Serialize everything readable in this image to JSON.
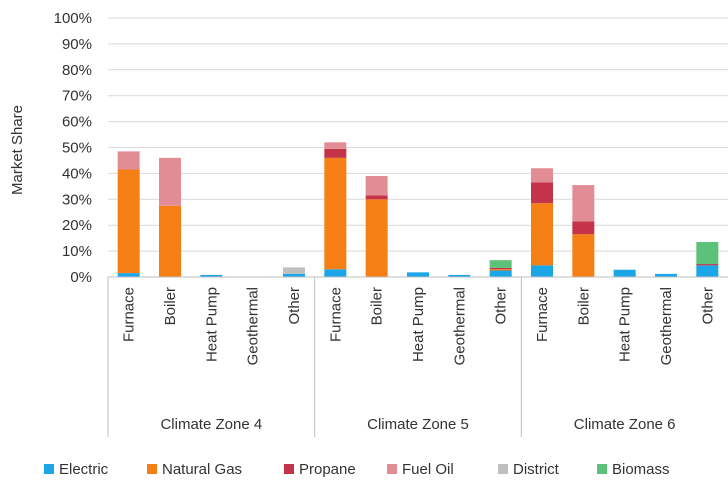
{
  "chart_data": {
    "type": "bar",
    "stacked": true,
    "ylabel": "Market Share",
    "ylim": [
      0,
      100
    ],
    "y_tick_values": [
      0,
      10,
      20,
      30,
      40,
      50,
      60,
      70,
      80,
      90,
      100
    ],
    "y_tick_labels": [
      "0%",
      "10%",
      "20%",
      "30%",
      "40%",
      "50%",
      "60%",
      "70%",
      "80%",
      "90%",
      "100%"
    ],
    "grid": "horizontal",
    "legend_position": "bottom",
    "groups": [
      {
        "label": "Climate Zone 4",
        "categories": [
          "Furnace",
          "Boiler",
          "Heat Pump",
          "Geothermal",
          "Other"
        ]
      },
      {
        "label": "Climate Zone 5",
        "categories": [
          "Furnace",
          "Boiler",
          "Heat Pump",
          "Geothermal",
          "Other"
        ]
      },
      {
        "label": "Climate Zone 6",
        "categories": [
          "Furnace",
          "Boiler",
          "Heat Pump",
          "Geothermal",
          "Other"
        ]
      }
    ],
    "series": [
      {
        "name": "Electric",
        "color": "#1BA6E8",
        "values": [
          1.5,
          0,
          0.8,
          0,
          1.2,
          3,
          0,
          1.8,
          0.8,
          2.5,
          4.5,
          0,
          2.8,
          1.2,
          4.5
        ]
      },
      {
        "name": "Natural Gas",
        "color": "#F57F14",
        "values": [
          40,
          27.5,
          0,
          0,
          0,
          43,
          30,
          0,
          0,
          0.5,
          24,
          16.5,
          0,
          0,
          0
        ]
      },
      {
        "name": "Propane",
        "color": "#C5334A",
        "values": [
          0,
          0,
          0,
          0,
          0,
          3.5,
          1.5,
          0,
          0,
          0.5,
          8,
          5,
          0,
          0,
          0.5
        ]
      },
      {
        "name": "Fuel Oil",
        "color": "#E28D96",
        "values": [
          7,
          18.5,
          0,
          0,
          0,
          2.5,
          7.5,
          0,
          0,
          0,
          5.5,
          14,
          0,
          0,
          0
        ]
      },
      {
        "name": "District",
        "color": "#BFBFBF",
        "values": [
          0,
          0,
          0,
          0,
          2.5,
          0,
          0,
          0,
          0,
          0,
          0,
          0,
          0,
          0,
          0
        ]
      },
      {
        "name": "Biomass",
        "color": "#5CC27A",
        "values": [
          0,
          0,
          0,
          0,
          0,
          0,
          0,
          0,
          0,
          3,
          0,
          0,
          0,
          0,
          8.5
        ]
      }
    ]
  }
}
